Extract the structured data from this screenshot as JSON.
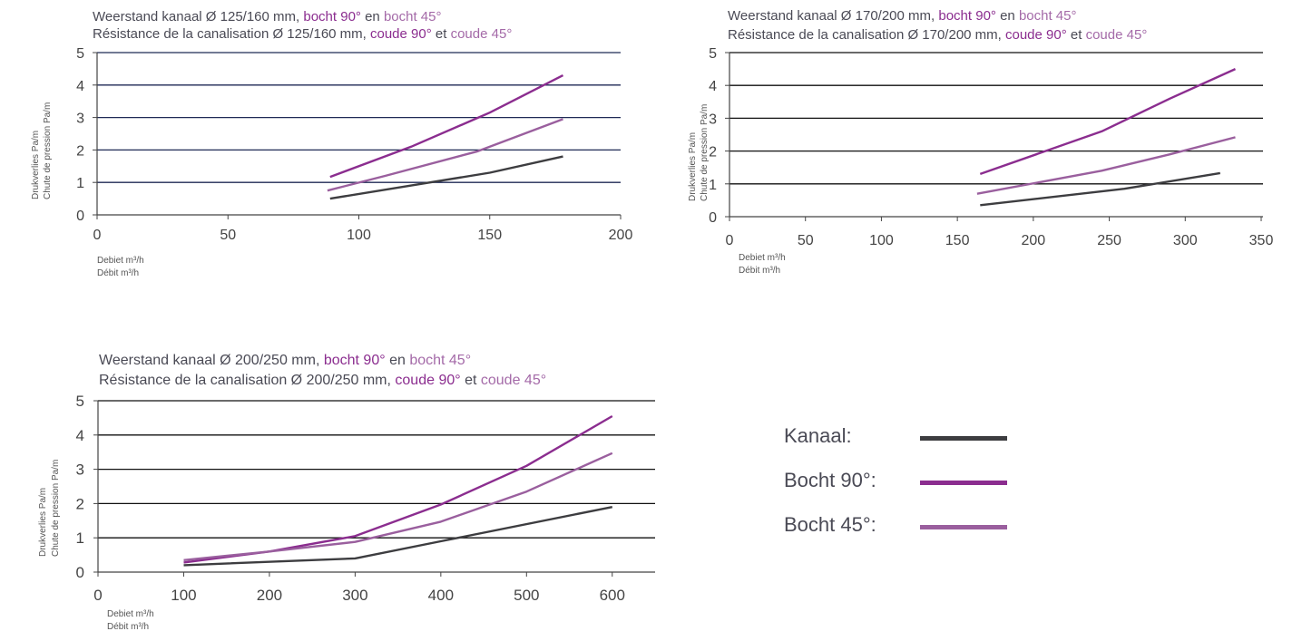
{
  "colors": {
    "kanaal": "#3d3d40",
    "bocht90": "#8b2d8f",
    "bocht45": "#9a5f9e",
    "grid_blue": "#1f2a55",
    "grid_black": "#111111",
    "axis": "#444444"
  },
  "charts": [
    {
      "title_nl": {
        "pre": "Weerstand",
        "mid1": " kanaal Ø 125/160 mm, ",
        "h90": "bocht 90°",
        "mid2": " en ",
        "h45": "bocht 45°"
      },
      "title_fr": {
        "pre": "Résistance de la canalisation Ø 125/160 mm, ",
        "h90": "coude 90°",
        "mid2": " et ",
        "h45": "coude 45°"
      },
      "ylabel_nl": "Drukverlies Pa/m",
      "ylabel_fr": "Chute de pression Pa/m",
      "xunit_nl": "Debiet m³/h",
      "xunit_fr": "Débit m³/h"
    },
    {
      "title_nl": {
        "pre": "Weerstand",
        "mid1": " kanaal Ø 170/200 mm, ",
        "h90": "bocht 90°",
        "mid2": " en ",
        "h45": "bocht 45°"
      },
      "title_fr": {
        "pre": "Résistance de la canalisation Ø 170/200 mm, ",
        "h90": "coude 90°",
        "mid2": " et ",
        "h45": "coude 45°"
      },
      "ylabel_nl": "Drukverlies Pa/m",
      "ylabel_fr": "Chute de pression Pa/m",
      "xunit_nl": "Debiet m³/h",
      "xunit_fr": "Débit m³/h"
    },
    {
      "title_nl": {
        "pre": "Weerstand",
        "mid1": " kanaal Ø 200/250 mm, ",
        "h90": "bocht 90°",
        "mid2": " en ",
        "h45": "bocht 45°"
      },
      "title_fr": {
        "pre": "Résistance de la canalisation Ø 200/250 mm, ",
        "h90": "coude 90°",
        "mid2": " et ",
        "h45": "coude 45°"
      },
      "ylabel_nl": "Drukverlies Pa/m",
      "ylabel_fr": "Chute de pression Pa/m",
      "xunit_nl": "Debiet m³/h",
      "xunit_fr": "Débit m³/h"
    }
  ],
  "legend": {
    "items": [
      {
        "label": "Kanaal:",
        "color_key": "kanaal"
      },
      {
        "label": "Bocht 90°:",
        "color_key": "bocht90"
      },
      {
        "label": "Bocht 45°:",
        "color_key": "bocht45"
      }
    ]
  },
  "chart_data": [
    {
      "type": "line",
      "title": "Weerstand kanaal Ø 125/160 mm, bocht 90° en bocht 45° / Résistance de la canalisation Ø 125/160 mm, coude 90° et coude 45°",
      "xlabel": "Debiet m³/h / Débit m³/h",
      "ylabel": "Drukverlies Pa/m / Chute de pression Pa/m",
      "xlim": [
        0,
        200
      ],
      "ylim": [
        0,
        5
      ],
      "xticks": [
        0,
        50,
        100,
        150,
        200
      ],
      "yticks": [
        0,
        1,
        2,
        3,
        4,
        5
      ],
      "grid": "horizontal",
      "series": [
        {
          "name": "Kanaal",
          "color_key": "kanaal",
          "points": [
            [
              89,
              0.5
            ],
            [
              150,
              1.3
            ],
            [
              178,
              1.8
            ]
          ]
        },
        {
          "name": "Bocht 90°",
          "color_key": "bocht90",
          "points": [
            [
              89,
              1.17
            ],
            [
              120,
              2.1
            ],
            [
              150,
              3.15
            ],
            [
              178,
              4.3
            ]
          ]
        },
        {
          "name": "Bocht 45°",
          "color_key": "bocht45",
          "points": [
            [
              88,
              0.75
            ],
            [
              110,
              1.2
            ],
            [
              145,
              1.95
            ],
            [
              178,
              2.95
            ]
          ]
        }
      ]
    },
    {
      "type": "line",
      "title": "Weerstand kanaal Ø 170/200 mm, bocht 90° en bocht 45° / Résistance de la canalisation Ø 170/200 mm, coude 90° et coude 45°",
      "xlabel": "Debiet m³/h / Débit m³/h",
      "ylabel": "Drukverlies Pa/m / Chute de pression Pa/m",
      "xlim": [
        0,
        350
      ],
      "ylim": [
        0,
        5
      ],
      "xticks": [
        0,
        50,
        100,
        150,
        200,
        250,
        300,
        350
      ],
      "yticks": [
        0,
        1,
        2,
        3,
        4,
        5
      ],
      "grid": "horizontal",
      "series": [
        {
          "name": "Kanaal",
          "color_key": "kanaal",
          "points": [
            [
              165,
              0.35
            ],
            [
              260,
              0.85
            ],
            [
              323,
              1.33
            ]
          ]
        },
        {
          "name": "Bocht 90°",
          "color_key": "bocht90",
          "points": [
            [
              165,
              1.3
            ],
            [
              245,
              2.6
            ],
            [
              290,
              3.6
            ],
            [
              333,
              4.5
            ]
          ]
        },
        {
          "name": "Bocht 45°",
          "color_key": "bocht45",
          "points": [
            [
              163,
              0.7
            ],
            [
              245,
              1.4
            ],
            [
              290,
              1.9
            ],
            [
              333,
              2.42
            ]
          ]
        }
      ]
    },
    {
      "type": "line",
      "title": "Weerstand kanaal Ø 200/250 mm, bocht 90° en bocht 45° / Résistance de la canalisation Ø 200/250 mm, coude 90° et coude 45°",
      "xlabel": "Debiet m³/h / Débit m³/h",
      "ylabel": "Drukverlies Pa/m / Chute de pression Pa/m",
      "xlim": [
        0,
        650
      ],
      "ylim": [
        0,
        5
      ],
      "xticks": [
        0,
        100,
        200,
        300,
        400,
        500,
        600
      ],
      "yticks": [
        0,
        1,
        2,
        3,
        4,
        5
      ],
      "grid": "horizontal",
      "series": [
        {
          "name": "Kanaal",
          "color_key": "kanaal",
          "points": [
            [
              100,
              0.2
            ],
            [
              300,
              0.4
            ],
            [
              400,
              0.9
            ],
            [
              600,
              1.9
            ]
          ]
        },
        {
          "name": "Bocht 90°",
          "color_key": "bocht90",
          "points": [
            [
              100,
              0.28
            ],
            [
              200,
              0.6
            ],
            [
              300,
              1.05
            ],
            [
              400,
              1.97
            ],
            [
              500,
              3.1
            ],
            [
              600,
              4.55
            ]
          ]
        },
        {
          "name": "Bocht 45°",
          "color_key": "bocht45",
          "points": [
            [
              100,
              0.35
            ],
            [
              200,
              0.6
            ],
            [
              300,
              0.88
            ],
            [
              400,
              1.47
            ],
            [
              500,
              2.35
            ],
            [
              600,
              3.47
            ]
          ]
        }
      ]
    }
  ]
}
